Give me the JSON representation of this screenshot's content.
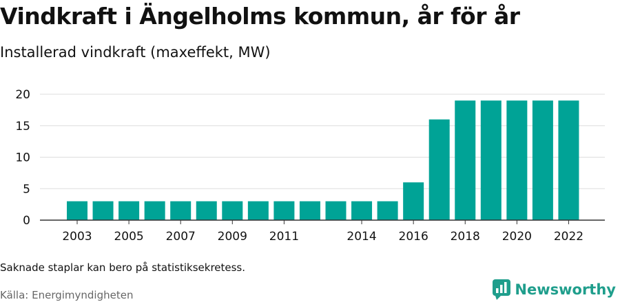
{
  "header": {
    "title": "Vindkraft i Ängelholms kommun, år för år",
    "subtitle": "Installerad vindkraft (maxeffekt, MW)"
  },
  "footer": {
    "note": "Saknade staplar kan bero på statistiksekretess.",
    "source": "Källa: Energimyndigheten",
    "brand": "Newsworthy",
    "brand_icon": "bar-chart-logo-icon"
  },
  "colors": {
    "bar": "#00a396",
    "grid": "#dddddd",
    "axis": "#333333",
    "brand": "#1f9e8c"
  },
  "chart_data": {
    "type": "bar",
    "categories": [
      "2003",
      "2004",
      "2005",
      "2006",
      "2007",
      "2008",
      "2009",
      "2010",
      "2011",
      "2012",
      "2013",
      "2014",
      "2015",
      "2016",
      "2017",
      "2018",
      "2019",
      "2020",
      "2021",
      "2022"
    ],
    "values": [
      3,
      3,
      3,
      3,
      3,
      3,
      3,
      3,
      3,
      3,
      3,
      3,
      3,
      6,
      16,
      19,
      19,
      19,
      19,
      19
    ],
    "x_tick_labels": [
      "2003",
      "2005",
      "2007",
      "2009",
      "2011",
      "2014",
      "2016",
      "2018",
      "2020",
      "2022"
    ],
    "y_ticks": [
      0,
      5,
      10,
      15,
      20
    ],
    "ylim": [
      0,
      20
    ],
    "grid": true,
    "title": "Vindkraft i Ängelholms kommun, år för år",
    "ylabel": "Installerad vindkraft (maxeffekt, MW)",
    "xlabel": ""
  }
}
